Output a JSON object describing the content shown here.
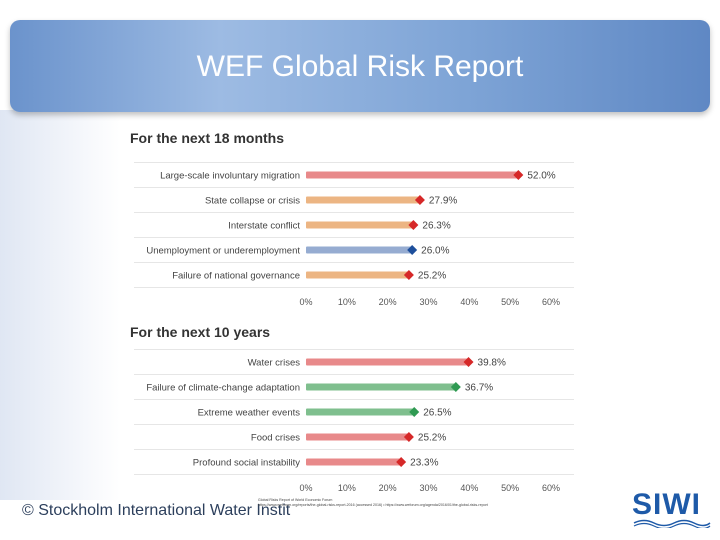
{
  "slide": {
    "title": "WEF Global Risk Report",
    "footer_org": "© Stockholm International Water Instit",
    "footer_logo": "SIWI",
    "source_line1": "Global Risks Report of World Economic Forum",
    "source_line2": "https://www.weforum.org/reports/the-global-risks-report-2016 (accessed 2016) • https://www.weforum.org/agenda/2016/01/the-global-risks-report"
  },
  "colors": {
    "title_bar": "#7ea4d6",
    "societal": "#e8898a",
    "geopolitical": "#ecb583",
    "economic": "#96acd1",
    "environmental": "#7fbf8e",
    "marker_red": "#d62828",
    "marker_blue": "#1e4f9c",
    "marker_green": "#2f9a52"
  },
  "chart_data": [
    {
      "type": "bar",
      "orientation": "horizontal",
      "title": "For the next 18 months",
      "categories": [
        "Large-scale involuntary migration",
        "State collapse or crisis",
        "Interstate conflict",
        "Unemployment or underemployment",
        "Failure of national governance"
      ],
      "values": [
        52.0,
        27.9,
        26.3,
        26.0,
        25.2
      ],
      "value_labels": [
        "52.0%",
        "27.9%",
        "26.3%",
        "26.0%",
        "25.2%"
      ],
      "bar_colors": [
        "#e8898a",
        "#ecb583",
        "#ecb583",
        "#96acd1",
        "#ecb583"
      ],
      "marker_colors": [
        "#d62828",
        "#d62828",
        "#d62828",
        "#1e4f9c",
        "#d62828"
      ],
      "xlim": [
        0,
        60
      ],
      "ticks": [
        "0%",
        "10%",
        "20%",
        "30%",
        "40%",
        "50%",
        "60%"
      ]
    },
    {
      "type": "bar",
      "orientation": "horizontal",
      "title": "For the next 10 years",
      "categories": [
        "Water crises",
        "Failure of climate-change adaptation",
        "Extreme weather events",
        "Food crises",
        "Profound social instability"
      ],
      "values": [
        39.8,
        36.7,
        26.5,
        25.2,
        23.3
      ],
      "value_labels": [
        "39.8%",
        "36.7%",
        "26.5%",
        "25.2%",
        "23.3%"
      ],
      "bar_colors": [
        "#e8898a",
        "#7fbf8e",
        "#7fbf8e",
        "#e8898a",
        "#e8898a"
      ],
      "marker_colors": [
        "#d62828",
        "#2f9a52",
        "#2f9a52",
        "#d62828",
        "#d62828"
      ],
      "xlim": [
        0,
        60
      ],
      "ticks": [
        "0%",
        "10%",
        "20%",
        "30%",
        "40%",
        "50%",
        "60%"
      ]
    }
  ]
}
